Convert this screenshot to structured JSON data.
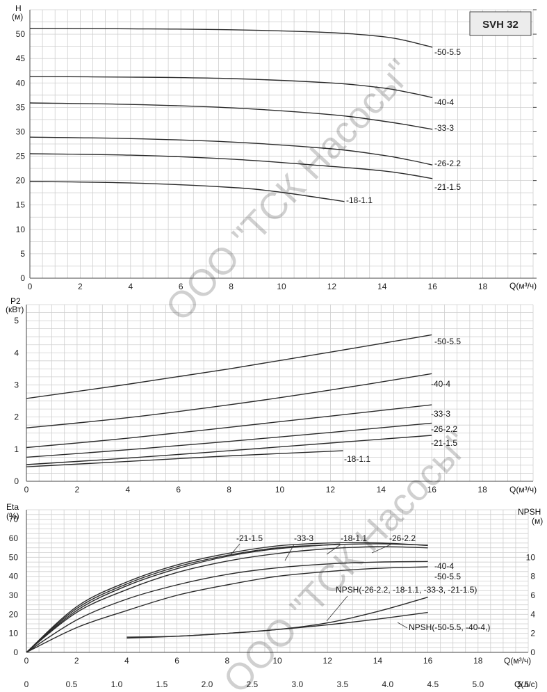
{
  "badge": "SVH 32",
  "watermarks": [
    "ООО \"ТСК Насосы\"",
    "ООО \"ТСК Насосы\""
  ],
  "chart_data": [
    {
      "type": "line",
      "title": "",
      "ylabel_top": "H",
      "ylabel_unit": "(м)",
      "xlabel": "Q(м³/ч)",
      "xlim": [
        0,
        20
      ],
      "ylim": [
        0,
        55
      ],
      "xticks": [
        0,
        2,
        4,
        6,
        8,
        10,
        12,
        14,
        16,
        18
      ],
      "yticks": [
        0,
        5,
        10,
        15,
        20,
        25,
        30,
        35,
        40,
        45,
        50
      ],
      "grid": true,
      "series": [
        {
          "name": "-50-5.5",
          "x": [
            0,
            4,
            8,
            12,
            14,
            15,
            16
          ],
          "y": [
            51.2,
            51.1,
            50.9,
            50.3,
            49.5,
            48.6,
            47.3
          ]
        },
        {
          "name": "-40-4",
          "x": [
            0,
            4,
            8,
            12,
            14,
            15,
            16
          ],
          "y": [
            41.3,
            41.2,
            40.9,
            40.0,
            39.0,
            38.1,
            37.0
          ]
        },
        {
          "name": "-33-3",
          "x": [
            0,
            4,
            8,
            12,
            14,
            15,
            16
          ],
          "y": [
            35.9,
            35.6,
            34.9,
            33.5,
            32.2,
            31.4,
            30.5
          ]
        },
        {
          "name": "-26-2.2",
          "x": [
            0,
            4,
            8,
            12,
            14,
            15,
            16
          ],
          "y": [
            25.5,
            25.2,
            24.4,
            22.9,
            22.0,
            21.3,
            20.4
          ]
        },
        {
          "name": "-21-1.5",
          "x": [
            0,
            4,
            8,
            12,
            14,
            15,
            16
          ],
          "y": [
            28.9,
            28.6,
            27.9,
            26.5,
            25.2,
            24.3,
            23.2
          ]
        },
        {
          "name": "-18-1.1",
          "x": [
            0,
            4,
            8,
            10,
            12.5
          ],
          "y": [
            19.8,
            19.5,
            18.6,
            17.6,
            15.7
          ]
        }
      ],
      "labels_order": [
        "-50-5.5",
        "-40-4",
        "-33-3",
        "-26-2.2",
        "-21-1.5",
        "-18-1.1"
      ]
    },
    {
      "type": "line",
      "title": "",
      "ylabel_top": "P2",
      "ylabel_unit": "(кВт)",
      "xlabel": "Q(м³/ч)",
      "xlim": [
        0,
        20
      ],
      "ylim": [
        0,
        5.5
      ],
      "xticks": [
        0,
        2,
        4,
        6,
        8,
        10,
        12,
        14,
        16,
        18
      ],
      "yticks": [
        0,
        1,
        2,
        3,
        4,
        5
      ],
      "grid": true,
      "series": [
        {
          "name": "-50-5.5",
          "x": [
            0,
            4,
            8,
            12,
            16
          ],
          "y": [
            2.58,
            3.02,
            3.5,
            4.02,
            4.56
          ]
        },
        {
          "name": "-40-4",
          "x": [
            0,
            4,
            8,
            12,
            16
          ],
          "y": [
            1.66,
            1.98,
            2.38,
            2.84,
            3.35
          ]
        },
        {
          "name": "-33-3",
          "x": [
            0,
            4,
            8,
            12,
            16
          ],
          "y": [
            1.05,
            1.34,
            1.68,
            2.03,
            2.38
          ]
        },
        {
          "name": "-26-2.2",
          "x": [
            0,
            4,
            8,
            12,
            16
          ],
          "y": [
            0.75,
            0.98,
            1.24,
            1.52,
            1.81
          ]
        },
        {
          "name": "-21-1.5",
          "x": [
            0,
            4,
            8,
            12,
            16
          ],
          "y": [
            0.52,
            0.72,
            0.95,
            1.19,
            1.43
          ]
        },
        {
          "name": "-18-1.1",
          "x": [
            0,
            4,
            8,
            12.5
          ],
          "y": [
            0.45,
            0.62,
            0.79,
            0.95
          ]
        }
      ],
      "labels_order": [
        "-50-5.5",
        "-40-4",
        "-33-3",
        "-26-2.2",
        "-21-1.5",
        "-18-1.1"
      ]
    },
    {
      "type": "line",
      "title": "",
      "ylabel_top": "Eta",
      "ylabel_unit": "(%)",
      "y2label_top": "NPSH",
      "y2label_unit": "(м)",
      "xlabel": "Q(м³/ч)",
      "x2label": "Q(л/с)",
      "xlim": [
        0,
        20
      ],
      "ylim": [
        0,
        75
      ],
      "y2lim": [
        0,
        15
      ],
      "xticks": [
        0,
        2,
        4,
        6,
        8,
        10,
        12,
        14,
        16,
        18
      ],
      "yticks": [
        0,
        10,
        20,
        30,
        40,
        50,
        60,
        70
      ],
      "y2ticks": [
        0,
        2,
        4,
        6,
        8,
        10
      ],
      "x2ticks": [
        "0",
        "0.5",
        "1.0",
        "1.5",
        "2.0",
        "2.5",
        "3.0",
        "3.5",
        "4.0",
        "4.5",
        "5.0",
        "5.5"
      ],
      "grid": true,
      "series": [
        {
          "name": "-21-1.5",
          "x": [
            0,
            2,
            4,
            6,
            8,
            10,
            12,
            14,
            16
          ],
          "y": [
            0,
            24,
            37,
            46,
            52,
            56,
            57.5,
            57.6,
            56.2
          ]
        },
        {
          "name": "-33-3",
          "x": [
            0,
            2,
            4,
            6,
            8,
            10,
            12,
            14,
            16
          ],
          "y": [
            0,
            23,
            36,
            45,
            51,
            55,
            56.5,
            57.1,
            56.4
          ]
        },
        {
          "name": "-18-1.1",
          "x": [
            0,
            2,
            4,
            6,
            8,
            10,
            12.5
          ],
          "y": [
            0,
            22,
            35,
            44,
            50.5,
            54.5,
            57.0
          ]
        },
        {
          "name": "-26-2.2",
          "x": [
            0,
            2,
            4,
            6,
            8,
            10,
            12,
            14,
            16
          ],
          "y": [
            0,
            21,
            33,
            42,
            48,
            52,
            54.5,
            55.6,
            55.0
          ]
        },
        {
          "name": "-40-4",
          "x": [
            0,
            2,
            4,
            6,
            8,
            10,
            12,
            14,
            16
          ],
          "y": [
            0,
            17,
            28,
            35.5,
            41,
            44.5,
            46.5,
            47.5,
            47.8
          ]
        },
        {
          "name": "-50-5.5",
          "x": [
            0,
            2,
            4,
            6,
            8,
            10,
            12,
            14,
            16
          ],
          "y": [
            0,
            13,
            22,
            30,
            35.5,
            40,
            42.5,
            44.2,
            45.0
          ]
        }
      ],
      "npsh_series": [
        {
          "name": "NPSH(-26-2.2, -18-1.1, -33-3, -21-1.5)",
          "x": [
            4,
            6,
            8,
            10,
            12,
            14,
            16
          ],
          "y": [
            1.6,
            1.7,
            2.0,
            2.4,
            3.1,
            4.3,
            5.8
          ]
        },
        {
          "name": "NPSH(-50-5.5, -40-4,)",
          "x": [
            4,
            6,
            8,
            10,
            12,
            14,
            16
          ],
          "y": [
            1.5,
            1.7,
            2.0,
            2.4,
            2.9,
            3.5,
            4.2
          ]
        }
      ],
      "labels": [
        "-21-1.5",
        "-33-3",
        "-18-1.1",
        "-26-2.2",
        "-40-4",
        "-50-5.5",
        "NPSH(-26-2.2, -18-1.1, -33-3, -21-1.5)",
        "NPSH(-50-5.5, -40-4,)"
      ]
    }
  ]
}
